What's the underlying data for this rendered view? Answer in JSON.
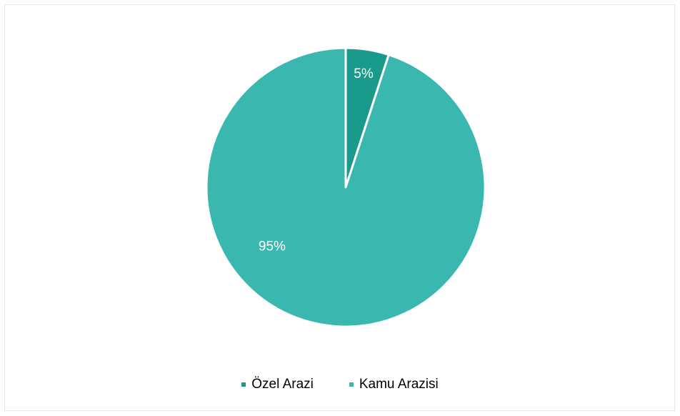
{
  "chart_data": {
    "type": "pie",
    "categories": [
      "Özel Arazi",
      "Kamu Arazisi"
    ],
    "values": [
      5,
      95
    ],
    "labels": [
      "5%",
      "95%"
    ],
    "colors": [
      "#1a9a8a",
      "#3ab8b0"
    ],
    "start_angle_deg": 0,
    "direction": "clockwise",
    "legend_position": "bottom"
  }
}
